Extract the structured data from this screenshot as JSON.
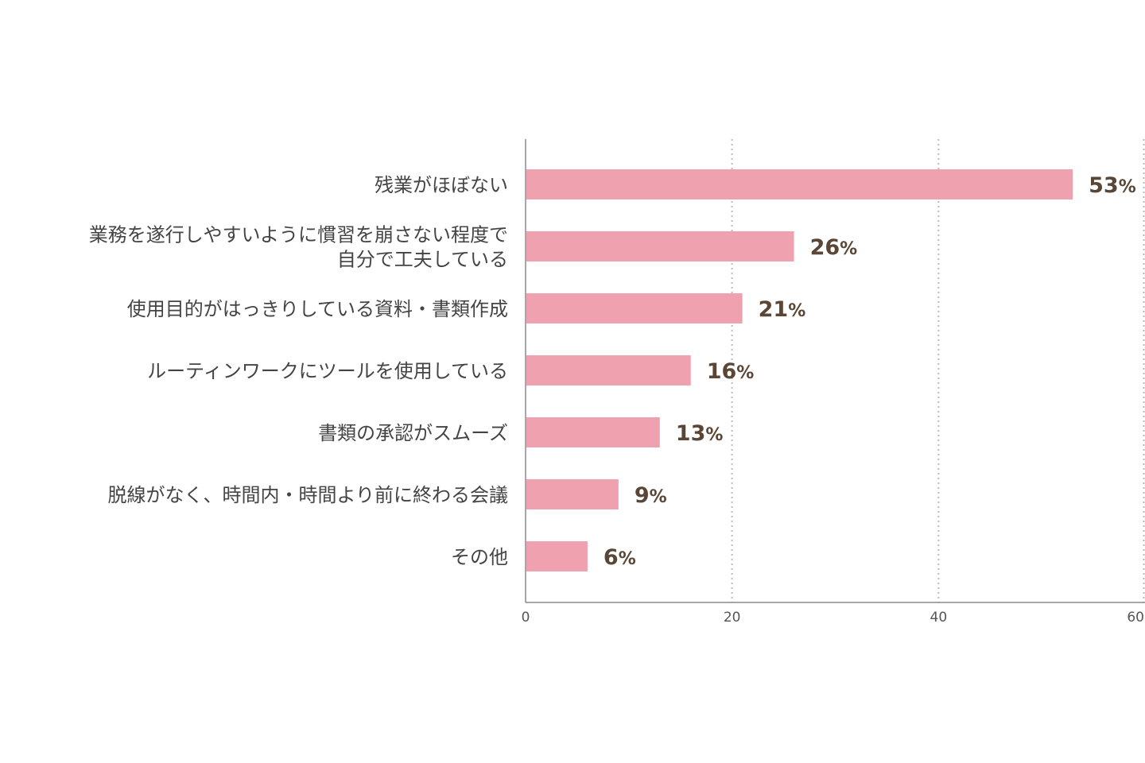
{
  "chart_data": {
    "type": "bar",
    "orientation": "horizontal",
    "categories": [
      [
        "残業がほぼない"
      ],
      [
        "業務を遂行しやすいように慣習を崩さない程度で",
        "自分で工夫している"
      ],
      [
        "使用目的がはっきりしている資料・書類作成"
      ],
      [
        "ルーティンワークにツールを使用している"
      ],
      [
        "書類の承認がスムーズ"
      ],
      [
        "脱線がなく、時間内・時間より前に終わる会議"
      ],
      [
        "その他"
      ]
    ],
    "values": [
      53,
      26,
      21,
      16,
      13,
      9,
      6
    ],
    "value_suffix": "%",
    "xlim": [
      0,
      60
    ],
    "xticks": [
      "0",
      "20",
      "40",
      "60"
    ],
    "grid": "vertical-dotted",
    "bar_color": "#f0a1b0",
    "label_color": "#5a4636",
    "title": "",
    "xlabel": "",
    "ylabel": ""
  }
}
